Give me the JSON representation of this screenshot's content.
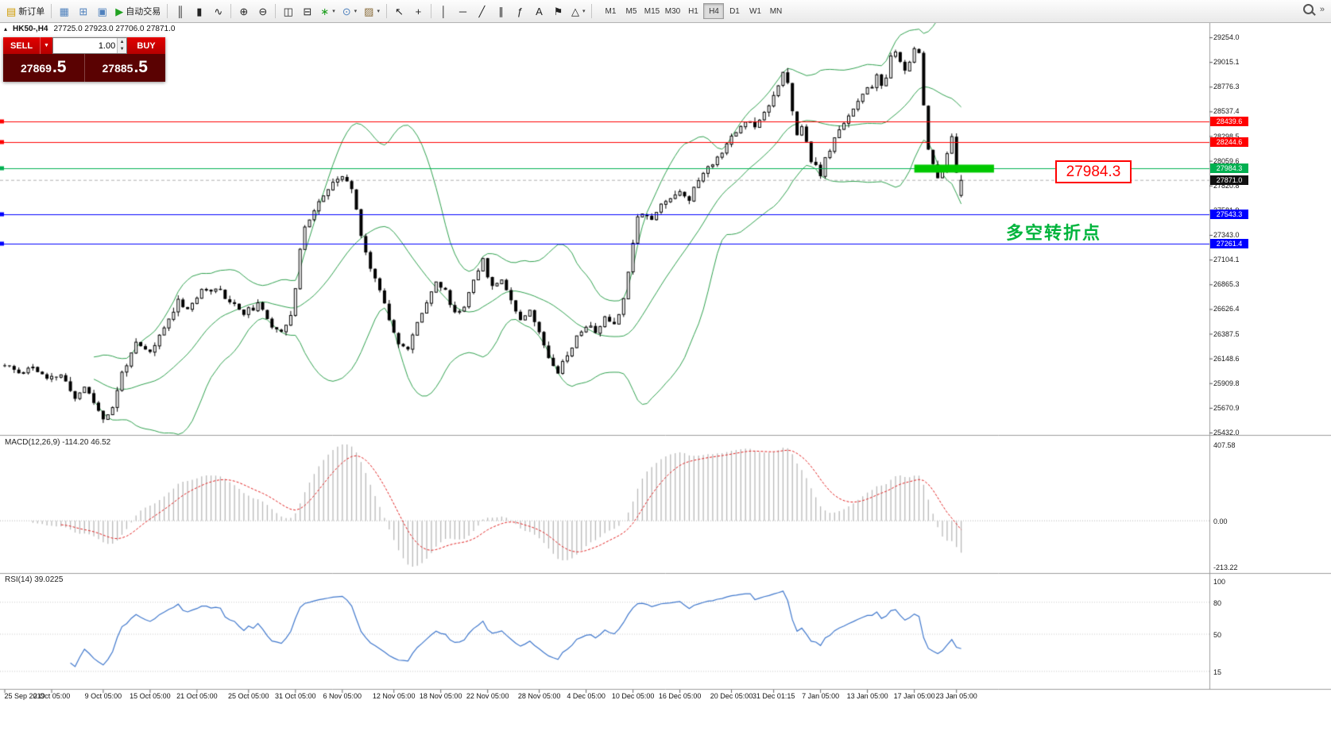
{
  "toolbar": {
    "new_order_label": "新订单",
    "autotrade_label": "自动交易",
    "timeframes": [
      "M1",
      "M5",
      "M15",
      "M30",
      "H1",
      "H4",
      "D1",
      "W1",
      "MN"
    ],
    "active_timeframe": "H4"
  },
  "chart": {
    "symbol_header": "HK50-,H4",
    "ohlc_text": "27725.0 27923.0 27706.0 27871.0",
    "trade_panel": {
      "sell_label": "SELL",
      "buy_label": "BUY",
      "volume": "1.00",
      "sell_price": {
        "main": "27869",
        "pips": ".5"
      },
      "buy_price": {
        "main": "27885",
        "pips": ".5"
      }
    },
    "price_axis": [
      "29254.0",
      "29015.1",
      "28776.3",
      "28537.4",
      "28298.5",
      "28059.6",
      "27820.8",
      "27581.9",
      "27343.0",
      "27104.1",
      "26865.3",
      "26626.4",
      "26387.5",
      "26148.6",
      "25909.8",
      "25670.9",
      "25432.0"
    ],
    "levels": [
      {
        "price": 28439.6,
        "label": "28439.6",
        "color": "#ff0000"
      },
      {
        "price": 28244.6,
        "label": "28244.6",
        "color": "#ff0000"
      },
      {
        "price": 27984.3,
        "label": "27984.3",
        "color": "#00b050"
      },
      {
        "price": 27543.3,
        "label": "27543.3",
        "color": "#0000ff"
      },
      {
        "price": 27261.4,
        "label": "27261.4",
        "color": "#0000ff"
      }
    ],
    "bid_line": {
      "price": 27871.0,
      "label": "27871.0",
      "color": "#111111"
    },
    "annotations": {
      "price_box": "27984.3",
      "turning_point": "多空转折点",
      "highlight_color": "#00c800",
      "price_box_color": "#ff0000",
      "turning_point_color": "#00b43c"
    }
  },
  "macd": {
    "label": "MACD(12,26,9) -114.20 46.52",
    "axis_max": "407.58",
    "axis_zero": "0.00",
    "axis_min": "-213.22"
  },
  "rsi": {
    "label": "RSI(14) 39.0225",
    "levels": [
      "100",
      "80",
      "50",
      "15"
    ]
  },
  "time_axis": {
    "labels": [
      "25 Sep 2019",
      "2 Oct 05:00",
      "9 Oct 05:00",
      "15 Oct 05:00",
      "21 Oct 05:00",
      "25 Oct 05:00",
      "31 Oct 05:00",
      "6 Nov 05:00",
      "12 Nov 05:00",
      "18 Nov 05:00",
      "22 Nov 05:00",
      "28 Nov 05:00",
      "4 Dec 05:00",
      "10 Dec 05:00",
      "16 Dec 05:00",
      "20 Dec 05:00",
      "31 Dec 01:15",
      "7 Jan 05:00",
      "13 Jan 05:00",
      "17 Jan 05:00",
      "23 Jan 05:00"
    ],
    "bars": [
      0,
      10,
      21,
      31,
      41,
      52,
      62,
      72,
      83,
      93,
      103,
      114,
      124,
      134,
      144,
      155,
      164,
      174,
      184,
      194,
      203
    ]
  },
  "chart_data": {
    "type": "candlestick",
    "symbol": "HK50",
    "timeframe": "H4",
    "bars": 205,
    "price_range": [
      25432.0,
      29254.0
    ],
    "last_bar": {
      "open": 27725.0,
      "high": 27923.0,
      "low": 27706.0,
      "close": 27871.0
    },
    "bid": 27869.5,
    "ask": 27885.5,
    "anchors": [
      [
        0,
        26080
      ],
      [
        3,
        26010
      ],
      [
        6,
        26070
      ],
      [
        9,
        25940
      ],
      [
        12,
        25990
      ],
      [
        15,
        25760
      ],
      [
        17,
        25880
      ],
      [
        21,
        25570
      ],
      [
        23,
        25660
      ],
      [
        25,
        26010
      ],
      [
        28,
        26280
      ],
      [
        31,
        26200
      ],
      [
        34,
        26440
      ],
      [
        37,
        26710
      ],
      [
        39,
        26630
      ],
      [
        42,
        26790
      ],
      [
        45,
        26840
      ],
      [
        48,
        26700
      ],
      [
        51,
        26590
      ],
      [
        54,
        26660
      ],
      [
        57,
        26470
      ],
      [
        59,
        26420
      ],
      [
        61,
        26560
      ],
      [
        62,
        26820
      ],
      [
        63,
        27180
      ],
      [
        64,
        27440
      ],
      [
        66,
        27580
      ],
      [
        68,
        27730
      ],
      [
        70,
        27830
      ],
      [
        72,
        27910
      ],
      [
        74,
        27790
      ],
      [
        76,
        27360
      ],
      [
        78,
        27010
      ],
      [
        80,
        26830
      ],
      [
        82,
        26530
      ],
      [
        84,
        26310
      ],
      [
        86,
        26230
      ],
      [
        88,
        26490
      ],
      [
        90,
        26710
      ],
      [
        92,
        26890
      ],
      [
        94,
        26790
      ],
      [
        96,
        26580
      ],
      [
        98,
        26650
      ],
      [
        100,
        26930
      ],
      [
        102,
        27090
      ],
      [
        104,
        26830
      ],
      [
        106,
        26930
      ],
      [
        108,
        26710
      ],
      [
        110,
        26530
      ],
      [
        112,
        26630
      ],
      [
        114,
        26390
      ],
      [
        116,
        26170
      ],
      [
        118,
        26030
      ],
      [
        120,
        26190
      ],
      [
        122,
        26350
      ],
      [
        124,
        26470
      ],
      [
        126,
        26410
      ],
      [
        128,
        26530
      ],
      [
        130,
        26490
      ],
      [
        132,
        26710
      ],
      [
        133,
        27010
      ],
      [
        134,
        27290
      ],
      [
        135,
        27510
      ],
      [
        136,
        27570
      ],
      [
        138,
        27490
      ],
      [
        140,
        27630
      ],
      [
        142,
        27710
      ],
      [
        144,
        27770
      ],
      [
        146,
        27690
      ],
      [
        148,
        27880
      ],
      [
        150,
        27990
      ],
      [
        152,
        28090
      ],
      [
        154,
        28230
      ],
      [
        156,
        28330
      ],
      [
        158,
        28450
      ],
      [
        160,
        28410
      ],
      [
        162,
        28530
      ],
      [
        164,
        28700
      ],
      [
        166,
        28900
      ],
      [
        167,
        28800
      ],
      [
        168,
        28520
      ],
      [
        169,
        28300
      ],
      [
        170,
        28400
      ],
      [
        171,
        28240
      ],
      [
        172,
        28070
      ],
      [
        174,
        27920
      ],
      [
        175,
        28070
      ],
      [
        177,
        28260
      ],
      [
        179,
        28440
      ],
      [
        181,
        28570
      ],
      [
        183,
        28690
      ],
      [
        185,
        28790
      ],
      [
        186,
        28890
      ],
      [
        187,
        28760
      ],
      [
        188,
        28860
      ],
      [
        189,
        29060
      ],
      [
        190,
        29130
      ],
      [
        191,
        28990
      ],
      [
        192,
        28910
      ],
      [
        193,
        29010
      ],
      [
        194,
        29160
      ],
      [
        195,
        29120
      ],
      [
        196,
        28590
      ],
      [
        197,
        28160
      ],
      [
        198,
        28030
      ],
      [
        199,
        27910
      ],
      [
        200,
        27990
      ],
      [
        201,
        28110
      ],
      [
        202,
        28280
      ],
      [
        203,
        27950
      ],
      [
        204,
        27871
      ]
    ],
    "seed": 11,
    "noise": 55,
    "wick": 42,
    "overlays": [
      {
        "name": "Bollinger Bands",
        "period": 20,
        "deviation": 2,
        "color": "#2fa04e"
      }
    ],
    "indicators": [
      {
        "name": "MACD",
        "fast": 12,
        "slow": 26,
        "signal": 9,
        "value": -114.2,
        "signal_value": 46.52
      },
      {
        "name": "RSI",
        "period": 14,
        "value": 39.0225
      }
    ],
    "colors": {
      "up": "#ffffff",
      "down": "#000000",
      "outline": "#000000",
      "macd_hist": "#b8b8b8",
      "macd_signal": "#e02020",
      "rsi": "#3f77cc"
    }
  }
}
